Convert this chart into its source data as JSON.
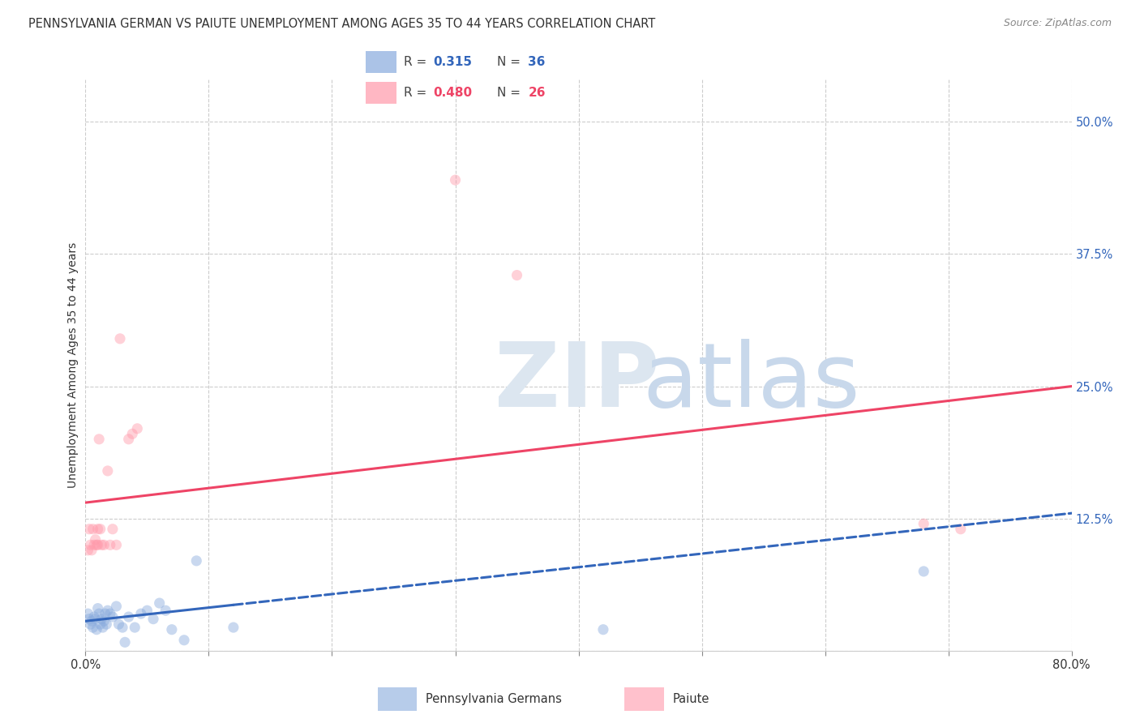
{
  "title": "PENNSYLVANIA GERMAN VS PAIUTE UNEMPLOYMENT AMONG AGES 35 TO 44 YEARS CORRELATION CHART",
  "source": "Source: ZipAtlas.com",
  "ylabel": "Unemployment Among Ages 35 to 44 years",
  "xlim": [
    0.0,
    0.8
  ],
  "ylim": [
    0.0,
    0.54
  ],
  "background_color": "#ffffff",
  "pa_color": "#88aadd",
  "paiute_color": "#ff99aa",
  "pa_line_color": "#3366bb",
  "paiute_line_color": "#ee4466",
  "marker_size": 90,
  "marker_alpha": 0.45,
  "line_width": 2.2,
  "pa_R": 0.315,
  "pa_N": 36,
  "paiute_R": 0.48,
  "paiute_N": 26,
  "pa_x": [
    0.002,
    0.003,
    0.004,
    0.005,
    0.006,
    0.007,
    0.008,
    0.009,
    0.01,
    0.011,
    0.012,
    0.013,
    0.014,
    0.015,
    0.016,
    0.017,
    0.018,
    0.02,
    0.022,
    0.025,
    0.027,
    0.03,
    0.032,
    0.035,
    0.04,
    0.045,
    0.05,
    0.055,
    0.06,
    0.065,
    0.07,
    0.08,
    0.09,
    0.12,
    0.42,
    0.68
  ],
  "pa_y": [
    0.035,
    0.03,
    0.025,
    0.028,
    0.022,
    0.032,
    0.03,
    0.02,
    0.04,
    0.035,
    0.025,
    0.03,
    0.022,
    0.028,
    0.035,
    0.025,
    0.038,
    0.035,
    0.032,
    0.042,
    0.025,
    0.022,
    0.008,
    0.032,
    0.022,
    0.035,
    0.038,
    0.03,
    0.045,
    0.038,
    0.02,
    0.01,
    0.085,
    0.022,
    0.02,
    0.075
  ],
  "pi_x": [
    0.002,
    0.003,
    0.004,
    0.005,
    0.006,
    0.007,
    0.008,
    0.009,
    0.01,
    0.01,
    0.011,
    0.012,
    0.013,
    0.015,
    0.018,
    0.02,
    0.022,
    0.025,
    0.028,
    0.035,
    0.038,
    0.042,
    0.3,
    0.35,
    0.68,
    0.71
  ],
  "pi_y": [
    0.095,
    0.115,
    0.1,
    0.095,
    0.115,
    0.1,
    0.105,
    0.1,
    0.1,
    0.115,
    0.2,
    0.115,
    0.1,
    0.1,
    0.17,
    0.1,
    0.115,
    0.1,
    0.295,
    0.2,
    0.205,
    0.21,
    0.445,
    0.355,
    0.12,
    0.115
  ],
  "pa_line_x0": 0.0,
  "pa_line_x_solid_end": 0.12,
  "pa_line_x1": 0.8,
  "pa_line_y0": 0.028,
  "pa_line_y1": 0.13,
  "pi_line_y0": 0.14,
  "pi_line_y1": 0.25
}
